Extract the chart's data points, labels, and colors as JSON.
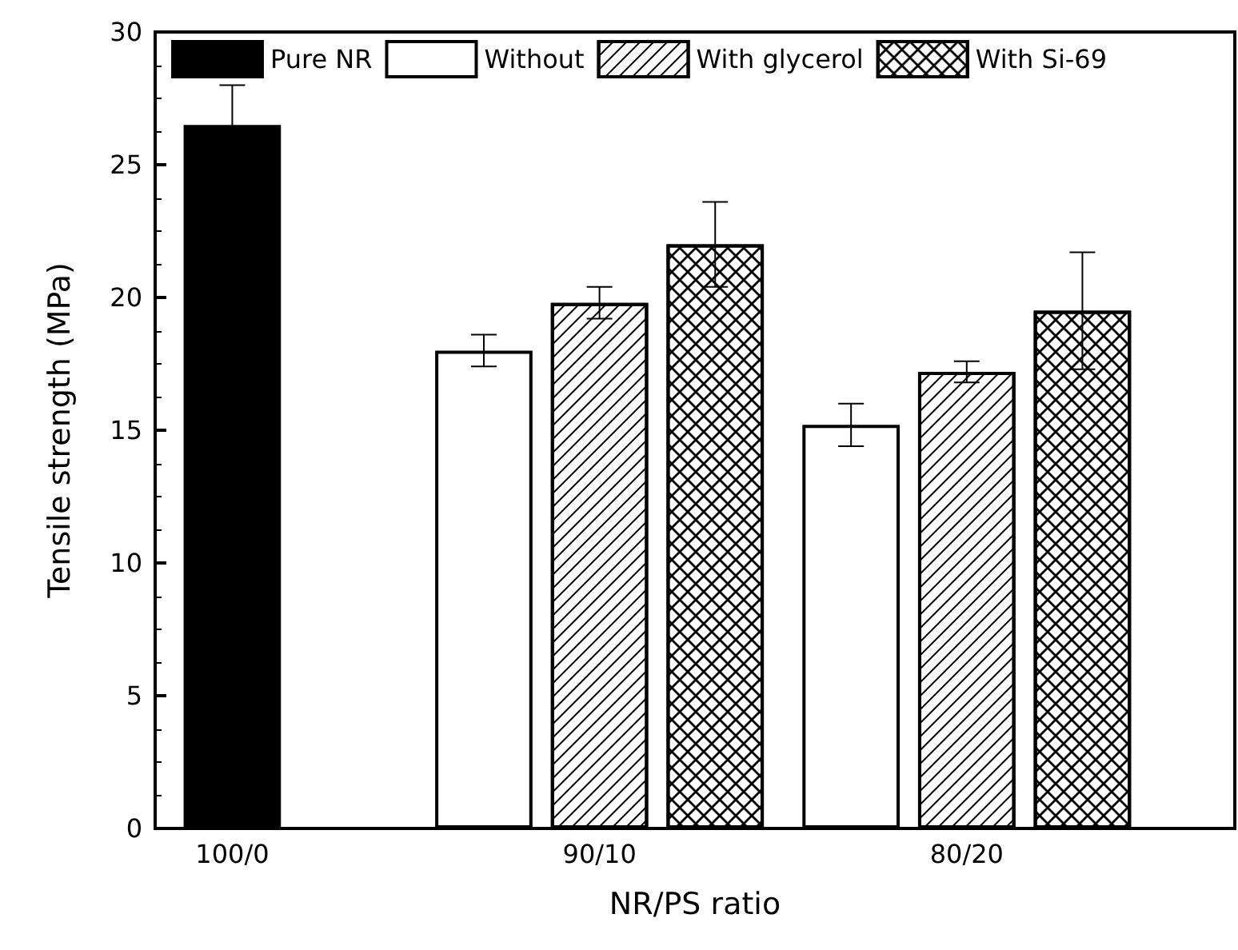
{
  "chart_data": {
    "type": "bar",
    "categories": [
      "100/0",
      "90/10",
      "80/20"
    ],
    "xlabel": "NR/PS ratio",
    "ylabel": "Tensile strength (MPa)",
    "ylim": [
      0,
      30
    ],
    "yticks": [
      0,
      5,
      10,
      15,
      20,
      25,
      30
    ],
    "legend": "top left",
    "grid": false,
    "series": [
      {
        "name": "Pure NR",
        "color": "#000000",
        "values": [
          26.5,
          null,
          null
        ],
        "errors": [
          1.5,
          null,
          null
        ]
      },
      {
        "name": "Without",
        "color": "#ffffff",
        "values": [
          null,
          18.0,
          15.2
        ],
        "errors": [
          null,
          0.6,
          0.8
        ]
      },
      {
        "name": "With glycerol",
        "color": "#ffffff",
        "values": [
          null,
          19.8,
          17.2
        ],
        "errors": [
          null,
          0.6,
          0.4
        ]
      },
      {
        "name": "With Si-69",
        "color": "#ffffff",
        "values": [
          null,
          22.0,
          19.5
        ],
        "errors": [
          null,
          1.6,
          2.2
        ]
      }
    ]
  }
}
